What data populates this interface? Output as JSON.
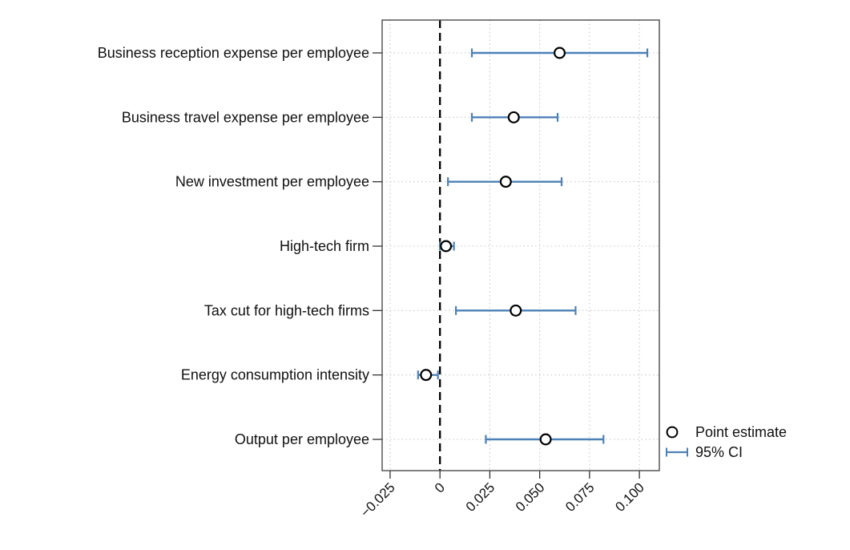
{
  "chart_data": {
    "type": "scatter",
    "subtype": "coefficient-plot-horizontal-ci",
    "title": "",
    "xlabel": "",
    "ylabel": "",
    "categories": [
      "Business reception expense per employee",
      "Business travel expense per employee",
      "New investment per employee",
      "High-tech firm",
      "Tax cut for high-tech firms",
      "Energy consumption intensity",
      "Output per employee"
    ],
    "estimates": [
      0.06,
      0.037,
      0.033,
      0.003,
      0.038,
      -0.007,
      0.053
    ],
    "ci_lower": [
      0.016,
      0.016,
      0.004,
      0.0,
      0.008,
      -0.011,
      0.023
    ],
    "ci_upper": [
      0.104,
      0.059,
      0.061,
      0.007,
      0.068,
      -0.001,
      0.082
    ],
    "xticks": [
      -0.025,
      0,
      0.025,
      0.05,
      0.075,
      0.1
    ],
    "xtick_labels": [
      "−0.025",
      "0",
      "0.025",
      "0.050",
      "0.075",
      "0.100"
    ],
    "xlim": [
      -0.029,
      0.11
    ],
    "zero_reference_line": 0,
    "grid": "dotted-both-axes",
    "legend": {
      "position": "right-bottom-outside",
      "items": [
        {
          "marker": "open-circle",
          "label": "Point estimate"
        },
        {
          "marker": "error-bar",
          "label": "95% CI"
        }
      ]
    },
    "colors": {
      "ci": "#4c80b6",
      "point_fill": "#ffffff",
      "point_stroke": "#000000",
      "zero_line": "#000000",
      "grid": "#c6c6c6",
      "frame": "#4a4a4a",
      "text": "#111111"
    }
  }
}
